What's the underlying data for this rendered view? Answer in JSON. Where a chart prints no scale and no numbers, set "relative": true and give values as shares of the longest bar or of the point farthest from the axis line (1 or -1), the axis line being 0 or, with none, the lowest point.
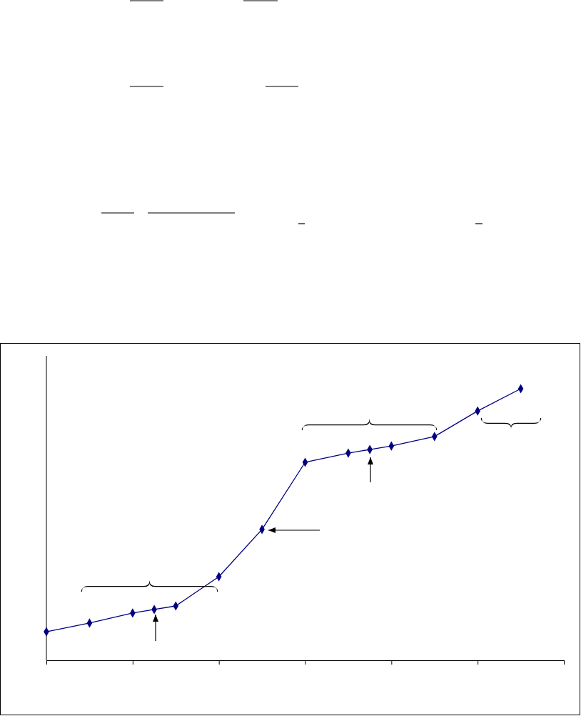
{
  "chart_data": {
    "type": "line",
    "relative": true,
    "categories": [
      null,
      null,
      null,
      null,
      null,
      null,
      null,
      null,
      null,
      null,
      null,
      null,
      null,
      null,
      null,
      null,
      null,
      null,
      null,
      null,
      null,
      null,
      null
    ],
    "series": [
      {
        "color": "#000080",
        "values": [
          0.105,
          null,
          0.137,
          null,
          0.174,
          0.187,
          0.2,
          null,
          0.308,
          null,
          0.482,
          null,
          0.729,
          null,
          0.763,
          0.776,
          0.789,
          null,
          0.824,
          null,
          0.918,
          null,
          1
        ]
      }
    ],
    "marker": "diamond",
    "line_style": "solid"
  }
}
